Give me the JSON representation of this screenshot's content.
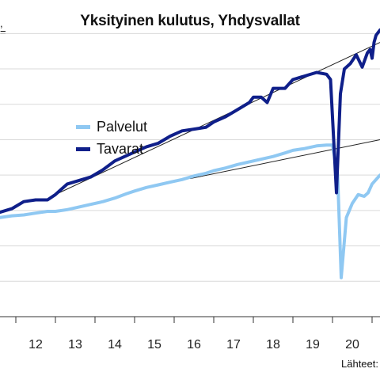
{
  "chart_data": {
    "type": "line",
    "title": "Yksityinen kulutus, Yhdysvallat",
    "xlabel": "",
    "ylabel": "",
    "x_ticks": [
      "12",
      "13",
      "14",
      "15",
      "16",
      "17",
      "18",
      "19",
      "20"
    ],
    "xlim": [
      2011.6,
      2021.2
    ],
    "ylim": [
      0,
      17
    ],
    "grid": true,
    "legend_position": "upper-left",
    "source_label": "Lähteet:",
    "series": [
      {
        "name": "Palvelut",
        "color": "#8fc8f2",
        "x": [
          2011.6,
          2011.9,
          2012.2,
          2012.5,
          2012.8,
          2013.0,
          2013.3,
          2013.6,
          2013.9,
          2014.2,
          2014.5,
          2014.8,
          2015.0,
          2015.3,
          2015.6,
          2015.9,
          2016.2,
          2016.5,
          2016.8,
          2017.0,
          2017.3,
          2017.6,
          2017.9,
          2018.2,
          2018.5,
          2018.8,
          2019.0,
          2019.3,
          2019.6,
          2019.85,
          2020.0,
          2020.13,
          2020.22,
          2020.35,
          2020.5,
          2020.65,
          2020.8,
          2020.9,
          2021.0,
          2021.2
        ],
        "y": [
          5.6,
          5.7,
          5.75,
          5.85,
          5.95,
          5.95,
          6.05,
          6.2,
          6.35,
          6.5,
          6.7,
          6.95,
          7.1,
          7.3,
          7.45,
          7.6,
          7.75,
          7.95,
          8.1,
          8.25,
          8.4,
          8.6,
          8.75,
          8.9,
          9.05,
          9.25,
          9.4,
          9.5,
          9.65,
          9.7,
          9.7,
          8.0,
          2.2,
          5.6,
          6.4,
          6.9,
          6.8,
          7.0,
          7.5,
          8.0
        ]
      },
      {
        "name": "Tavarat",
        "color": "#0f1f8a",
        "x": [
          2011.6,
          2011.9,
          2012.2,
          2012.5,
          2012.8,
          2013.0,
          2013.3,
          2013.6,
          2013.9,
          2014.2,
          2014.5,
          2014.8,
          2015.0,
          2015.3,
          2015.6,
          2015.9,
          2016.2,
          2016.5,
          2016.8,
          2017.0,
          2017.3,
          2017.6,
          2017.9,
          2018.0,
          2018.2,
          2018.35,
          2018.5,
          2018.8,
          2019.0,
          2019.3,
          2019.6,
          2019.85,
          2019.95,
          2020.1,
          2020.2,
          2020.3,
          2020.45,
          2020.6,
          2020.75,
          2020.88,
          2020.95,
          2021.0,
          2021.05,
          2021.1,
          2021.2
        ],
        "y": [
          5.9,
          6.1,
          6.5,
          6.6,
          6.6,
          6.9,
          7.5,
          7.7,
          7.9,
          8.3,
          8.8,
          9.1,
          9.3,
          9.6,
          9.8,
          10.2,
          10.5,
          10.6,
          10.7,
          11.0,
          11.3,
          11.7,
          12.1,
          12.4,
          12.4,
          12.1,
          12.9,
          12.9,
          13.4,
          13.6,
          13.8,
          13.7,
          13.4,
          7.0,
          12.6,
          14.0,
          14.3,
          14.8,
          14.1,
          14.9,
          15.1,
          14.6,
          15.5,
          15.9,
          16.2
        ]
      }
    ],
    "trend_lines": [
      {
        "series": "Tavarat",
        "x": [
          2013.0,
          2021.2
        ],
        "y": [
          6.9,
          15.5
        ]
      },
      {
        "series": "Palvelut",
        "x": [
          2016.4,
          2021.2
        ],
        "y": [
          7.8,
          10.0
        ]
      }
    ]
  },
  "legend": [
    {
      "label": "Palvelut",
      "color": "#8fc8f2"
    },
    {
      "label": "Tavarat",
      "color": "#0f1f8a"
    }
  ]
}
